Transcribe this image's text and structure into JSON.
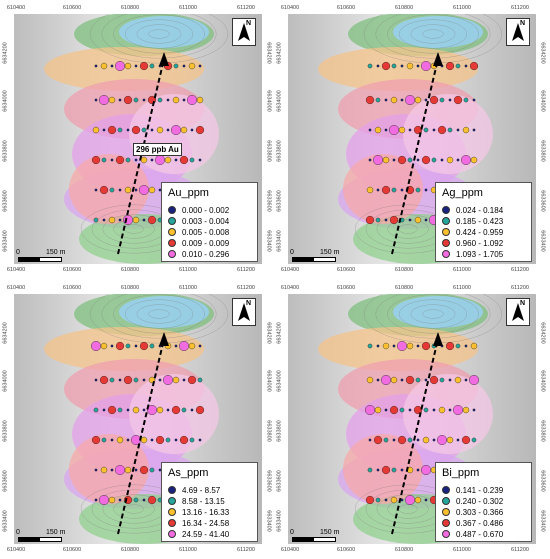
{
  "top_ticks": [
    "610400",
    "610600",
    "610800",
    "611000",
    "611200"
  ],
  "bottom_ticks": [
    "610400",
    "610600",
    "610800",
    "611000",
    "611200"
  ],
  "left_ticks": [
    "6634200",
    "6634000",
    "6633800",
    "6633600",
    "6633400"
  ],
  "right_ticks": [
    "6634200",
    "6634000",
    "6633800",
    "6633600",
    "6633400"
  ],
  "north_label": "N",
  "scale": {
    "left": "0",
    "right": "150 m"
  },
  "panels": [
    {
      "title": "Au_ppm",
      "items": [
        {
          "label": "0.000 - 0.002",
          "color": "#1a237e"
        },
        {
          "label": "0.003 - 0.004",
          "color": "#26a69a"
        },
        {
          "label": "0.005 - 0.008",
          "color": "#fbc02d"
        },
        {
          "label": "0.009 - 0.009",
          "color": "#e53935"
        },
        {
          "label": "0.010 - 0.296",
          "color": "#f06ce0"
        }
      ],
      "annotation": "296 ppb Au"
    },
    {
      "title": "Ag_ppm",
      "items": [
        {
          "label": "0.024 - 0.184",
          "color": "#1a237e"
        },
        {
          "label": "0.185 - 0.423",
          "color": "#26a69a"
        },
        {
          "label": "0.424 - 0.959",
          "color": "#fbc02d"
        },
        {
          "label": "0.960 - 1.092",
          "color": "#e53935"
        },
        {
          "label": "1.093 - 1.705",
          "color": "#f06ce0"
        }
      ]
    },
    {
      "title": "As_ppm",
      "items": [
        {
          "label": "4.69 - 8.57",
          "color": "#1a237e"
        },
        {
          "label": "8.58 - 13.15",
          "color": "#26a69a"
        },
        {
          "label": "13.16 - 16.33",
          "color": "#fbc02d"
        },
        {
          "label": "16.34 - 24.58",
          "color": "#e53935"
        },
        {
          "label": "24.59 - 41.40",
          "color": "#f06ce0"
        }
      ]
    },
    {
      "title": "Bi_ppm",
      "items": [
        {
          "label": "0.141 - 0.239",
          "color": "#1a237e"
        },
        {
          "label": "0.240 - 0.302",
          "color": "#26a69a"
        },
        {
          "label": "0.303 - 0.366",
          "color": "#fbc02d"
        },
        {
          "label": "0.367 - 0.486",
          "color": "#e53935"
        },
        {
          "label": "0.487 - 0.670",
          "color": "#f06ce0"
        }
      ]
    }
  ]
}
